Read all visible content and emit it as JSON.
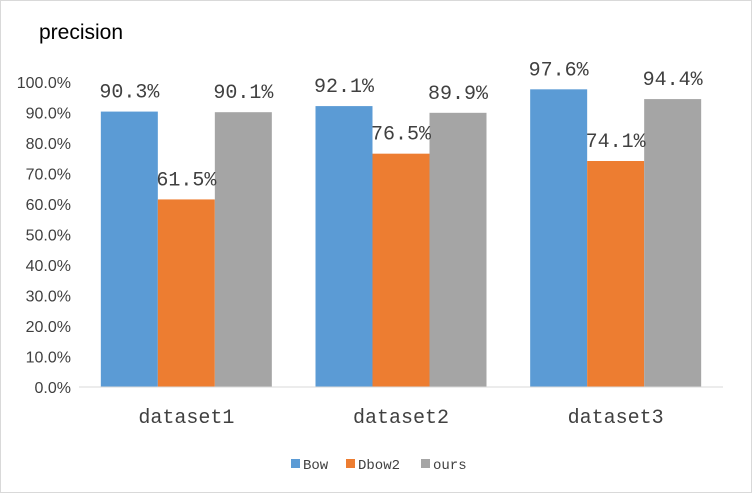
{
  "chart_data": {
    "type": "bar",
    "title": "precision",
    "xlabel": "",
    "ylabel": "",
    "categories": [
      "dataset1",
      "dataset2",
      "dataset3"
    ],
    "series": [
      {
        "name": "Bow",
        "color": "#5B9BD5",
        "values": [
          90.3,
          92.1,
          97.6
        ],
        "labels": [
          "90.3%",
          "92.1%",
          "97.6%"
        ]
      },
      {
        "name": "Dbow2",
        "color": "#ED7D31",
        "values": [
          61.5,
          76.5,
          74.1
        ],
        "labels": [
          "61.5%",
          "76.5%",
          "74.1%"
        ]
      },
      {
        "name": "ours",
        "color": "#A5A5A5",
        "values": [
          90.1,
          89.9,
          94.4
        ],
        "labels": [
          "90.1%",
          "89.9%",
          "94.4%"
        ]
      }
    ],
    "ylim": [
      0,
      100
    ],
    "yticks": [
      0,
      10,
      20,
      30,
      40,
      50,
      60,
      70,
      80,
      90,
      100
    ],
    "ytick_labels": [
      "0.0%",
      "10.0%",
      "20.0%",
      "30.0%",
      "40.0%",
      "50.0%",
      "60.0%",
      "70.0%",
      "80.0%",
      "90.0%",
      "100.0%"
    ],
    "grid": false,
    "legend_position": "bottom"
  }
}
